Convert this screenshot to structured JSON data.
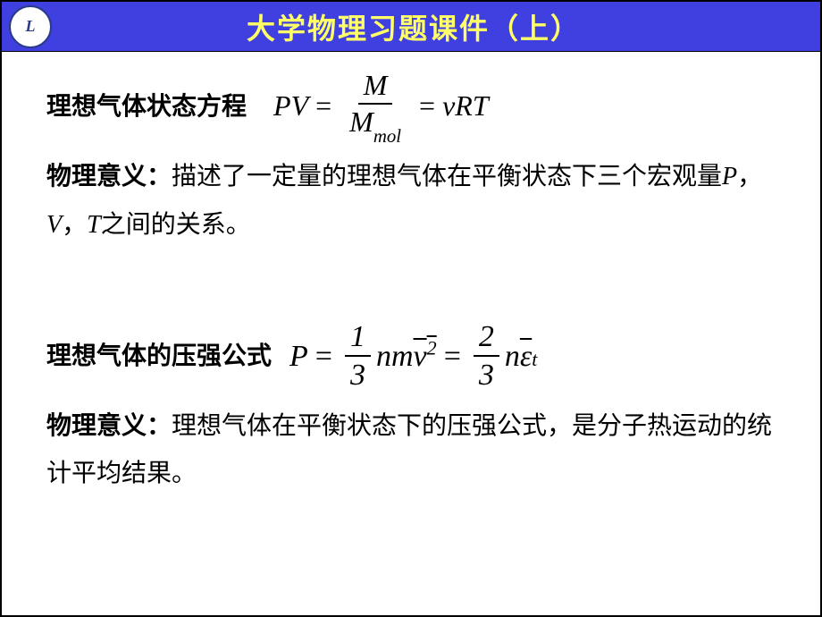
{
  "header": {
    "logo_text": "L",
    "title": "大学物理习题课件（上）"
  },
  "section1": {
    "label": "理想气体状态方程",
    "formula": {
      "lhs": "PV",
      "frac_num": "M",
      "frac_den_base": "M",
      "frac_den_sub": "mol",
      "rhs": "νRT"
    },
    "meaning_label": "物理意义：",
    "meaning_text_1": "描述了一定量的理想气体在平衡状态下三个宏观量",
    "var_p": "P",
    "comma1": "，",
    "var_v": "V",
    "comma2": "，",
    "var_t": "T",
    "meaning_text_2": "之间的关系。"
  },
  "section2": {
    "label": "理想气体的压强公式",
    "formula": {
      "lhs": "P",
      "frac1_num": "1",
      "frac1_den": "3",
      "mid1": "nm",
      "vbar": "v",
      "vsup": "2",
      "frac2_num": "2",
      "frac2_den": "3",
      "mid2": "n",
      "eps": "ε",
      "eps_sub": "t"
    },
    "meaning_label": "物理意义：",
    "meaning_text": "理想气体在平衡状态下的压强公式，是分子热运动的统计平均结果。"
  },
  "colors": {
    "header_bg": "#4040e0",
    "title_color": "#ffff66",
    "body_bg": "#ffffff",
    "text_color": "#000000"
  }
}
